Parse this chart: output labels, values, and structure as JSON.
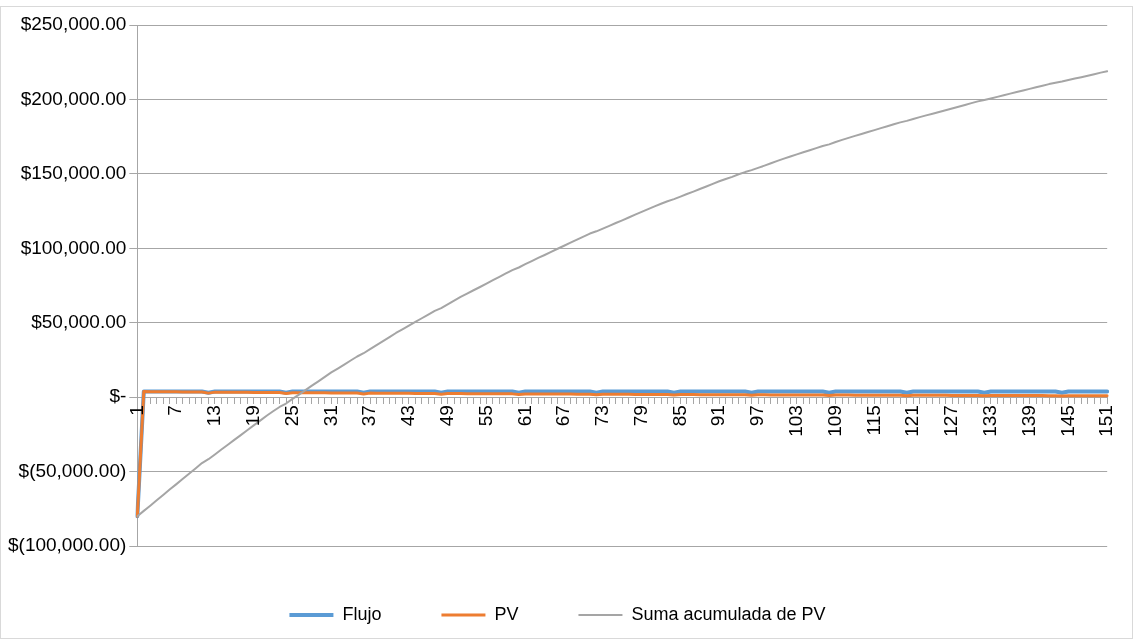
{
  "chart_data": {
    "type": "line",
    "categories": [
      "1",
      null,
      null,
      null,
      null,
      null,
      "7",
      null,
      null,
      null,
      null,
      null,
      "13",
      null,
      null,
      null,
      null,
      null,
      "19",
      null,
      null,
      null,
      null,
      null,
      "25",
      null,
      null,
      null,
      null,
      null,
      "31",
      null,
      null,
      null,
      null,
      null,
      "37",
      null,
      null,
      null,
      null,
      null,
      "43",
      null,
      null,
      null,
      null,
      null,
      "49",
      null,
      null,
      null,
      null,
      null,
      "55",
      null,
      null,
      null,
      null,
      null,
      "61",
      null,
      null,
      null,
      null,
      null,
      "67",
      null,
      null,
      null,
      null,
      null,
      "73",
      null,
      null,
      null,
      null,
      null,
      "79",
      null,
      null,
      null,
      null,
      null,
      "85",
      null,
      null,
      null,
      null,
      null,
      "91",
      null,
      null,
      null,
      null,
      null,
      "97",
      null,
      null,
      null,
      null,
      null,
      "103",
      null,
      null,
      null,
      null,
      null,
      "109",
      null,
      null,
      null,
      null,
      null,
      "115",
      null,
      null,
      null,
      null,
      null,
      "121",
      null,
      null,
      null,
      null,
      null,
      "127",
      null,
      null,
      null,
      null,
      null,
      "133",
      null,
      null,
      null,
      null,
      null,
      "139",
      null,
      null,
      null,
      null,
      null,
      "145",
      null,
      null,
      null,
      null,
      null,
      "151"
    ],
    "series": [
      {
        "name": "Flujo",
        "color": "#5b9bd5",
        "values": [
          -80000,
          3750,
          3750,
          3750,
          3750,
          3750,
          3750,
          3750,
          3750,
          3750,
          3750,
          3000,
          3750,
          3750,
          3750,
          3750,
          3750,
          3750,
          3750,
          3750,
          3750,
          3750,
          3750,
          3000,
          3750,
          3750,
          3750,
          3750,
          3750,
          3750,
          3750,
          3750,
          3750,
          3750,
          3750,
          3000,
          3750,
          3750,
          3750,
          3750,
          3750,
          3750,
          3750,
          3750,
          3750,
          3750,
          3750,
          3000,
          3750,
          3750,
          3750,
          3750,
          3750,
          3750,
          3750,
          3750,
          3750,
          3750,
          3750,
          3000,
          3750,
          3750,
          3750,
          3750,
          3750,
          3750,
          3750,
          3750,
          3750,
          3750,
          3750,
          3000,
          3750,
          3750,
          3750,
          3750,
          3750,
          3750,
          3750,
          3750,
          3750,
          3750,
          3750,
          3000,
          3750,
          3750,
          3750,
          3750,
          3750,
          3750,
          3750,
          3750,
          3750,
          3750,
          3750,
          3000,
          3750,
          3750,
          3750,
          3750,
          3750,
          3750,
          3750,
          3750,
          3750,
          3750,
          3750,
          3000,
          3750,
          3750,
          3750,
          3750,
          3750,
          3750,
          3750,
          3750,
          3750,
          3750,
          3750,
          3000,
          3750,
          3750,
          3750,
          3750,
          3750,
          3750,
          3750,
          3750,
          3750,
          3750,
          3750,
          3000,
          3750,
          3750,
          3750,
          3750,
          3750,
          3750,
          3750,
          3750,
          3750,
          3750,
          3750,
          3000,
          3750,
          3750,
          3750,
          3750,
          3750,
          3750,
          3750
        ]
      },
      {
        "name": "PV",
        "color": "#ed7d31",
        "values": [
          -80000,
          3720,
          3680,
          3650,
          3620,
          3590,
          3550,
          3520,
          3490,
          3450,
          3420,
          2710,
          3360,
          3330,
          3300,
          3270,
          3240,
          3210,
          3180,
          3150,
          3120,
          3090,
          3070,
          2430,
          3010,
          2980,
          2960,
          2930,
          2900,
          2870,
          2850,
          2820,
          2800,
          2770,
          2750,
          2180,
          2700,
          2670,
          2650,
          2620,
          2600,
          2570,
          2550,
          2530,
          2500,
          2480,
          2460,
          1950,
          2410,
          2390,
          2370,
          2350,
          2330,
          2300,
          2280,
          2260,
          2240,
          2220,
          2200,
          1740,
          2160,
          2140,
          2120,
          2100,
          2080,
          2060,
          2040,
          2030,
          2010,
          1990,
          1970,
          1560,
          1940,
          1920,
          1900,
          1880,
          1870,
          1850,
          1830,
          1810,
          1800,
          1780,
          1770,
          1400,
          1730,
          1720,
          1700,
          1690,
          1670,
          1650,
          1640,
          1620,
          1610,
          1600,
          1580,
          1240,
          1550,
          1540,
          1520,
          1510,
          1490,
          1480,
          1470,
          1450,
          1440,
          1430,
          1420,
          1120,
          1390,
          1380,
          1360,
          1350,
          1340,
          1330,
          1320,
          1300,
          1290,
          1280,
          1270,
          1010,
          1240,
          1230,
          1220,
          1210,
          1200,
          1190,
          1180,
          1170,
          1160,
          1150,
          1130,
          900,
          1110,
          1100,
          1090,
          1080,
          1070,
          1060,
          1050,
          1040,
          1030,
          1020,
          1010,
          800,
          1000,
          990,
          980,
          970,
          960,
          950,
          940
        ]
      },
      {
        "name": "Suma acumulada de PV",
        "color": "#a5a5a5",
        "values": [
          -80000,
          -76400,
          -72900,
          -69300,
          -65700,
          -62100,
          -58600,
          -55000,
          -51400,
          -47900,
          -44300,
          -41700,
          -38500,
          -35200,
          -32000,
          -28700,
          -25500,
          -22200,
          -19000,
          -15800,
          -12500,
          -9500,
          -6600,
          -4300,
          -1200,
          1700,
          4700,
          7700,
          10600,
          13600,
          16600,
          19200,
          21900,
          24600,
          27300,
          29500,
          32200,
          34900,
          37600,
          40300,
          43100,
          45500,
          48000,
          50500,
          53000,
          55500,
          58000,
          59800,
          62300,
          64800,
          67300,
          69600,
          71800,
          74000,
          76300,
          78600,
          80800,
          83100,
          85300,
          87100,
          89300,
          91400,
          93500,
          95500,
          97600,
          99700,
          101700,
          103800,
          105800,
          107900,
          109900,
          111400,
          113200,
          115100,
          117000,
          118800,
          120700,
          122600,
          124500,
          126300,
          128200,
          129900,
          131600,
          133000,
          134700,
          136500,
          138100,
          139800,
          141500,
          143300,
          145000,
          146500,
          148000,
          149700,
          151200,
          152500,
          154000,
          155500,
          157100,
          158700,
          160200,
          161700,
          163100,
          164500,
          165900,
          167300,
          168700,
          169800,
          171400,
          172800,
          174200,
          175500,
          176800,
          178100,
          179400,
          180700,
          182000,
          183300,
          184600,
          185600,
          186900,
          188100,
          189300,
          190400,
          191600,
          192700,
          193900,
          195100,
          196300,
          197500,
          198700,
          199600,
          200600,
          201700,
          202800,
          203900,
          205000,
          206000,
          207100,
          208200,
          209200,
          210300,
          211200,
          212000,
          213000,
          214000,
          214900,
          215900,
          216900,
          218000,
          218900
        ]
      }
    ],
    "ylim": [
      -100000,
      250000
    ],
    "yticks": [
      {
        "value": -100000,
        "label": "$(100,000.00)"
      },
      {
        "value": -50000,
        "label": "$(50,000.00)"
      },
      {
        "value": 0,
        "label": "$-"
      },
      {
        "value": 50000,
        "label": "$50,000.00"
      },
      {
        "value": 100000,
        "label": "$100,000.00"
      },
      {
        "value": 150000,
        "label": "$150,000.00"
      },
      {
        "value": 200000,
        "label": "$200,000.00"
      },
      {
        "value": 250000,
        "label": "$250,000.00"
      }
    ],
    "grid": "y",
    "legend": "bottom",
    "marker": "none",
    "line_style": "solid"
  }
}
